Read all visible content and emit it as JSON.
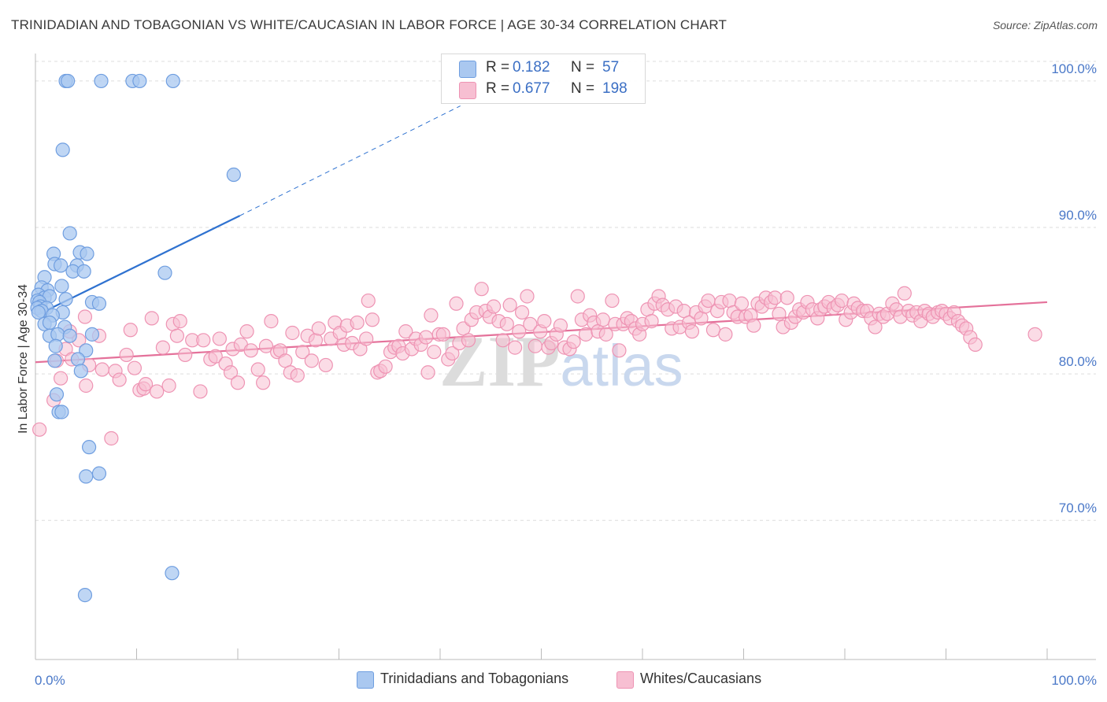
{
  "header": {
    "title": "TRINIDADIAN AND TOBAGONIAN VS WHITE/CAUCASIAN IN LABOR FORCE | AGE 30-34 CORRELATION CHART",
    "source": "Source: ZipAtlas.com"
  },
  "watermark": "ZIPatlas",
  "legend": {
    "series1": {
      "r_label": "R =",
      "r_value": "0.182",
      "n_label": "N =",
      "n_value": "57"
    },
    "series2": {
      "r_label": "R =",
      "r_value": "0.677",
      "n_label": "N =",
      "n_value": "198"
    }
  },
  "colors": {
    "blue_fill": "#aac8f0",
    "blue_stroke": "#6f9ee0",
    "blue_line": "#2f72d0",
    "pink_fill": "#f7bfd2",
    "pink_stroke": "#ee93b3",
    "pink_line": "#e4719a",
    "tick_text": "#4a78c8",
    "grid": "#dddddd"
  },
  "chart_data": {
    "type": "scatter",
    "title": "TRINIDADIAN AND TOBAGONIAN VS WHITE/CAUCASIAN IN LABOR FORCE | AGE 30-34 CORRELATION CHART",
    "xlabel": "",
    "ylabel": "In Labor Force | Age 30-34",
    "xlim": [
      0,
      100
    ],
    "ylim": [
      60.5,
      101.5
    ],
    "x_tick_labels": [
      "0.0%",
      "100.0%"
    ],
    "y_ticks": [
      70,
      80,
      90,
      100
    ],
    "y_tick_labels": [
      "70.0%",
      "80.0%",
      "90.0%",
      "100.0%"
    ],
    "legend_entries": [
      "Trinidadians and Tobagonians",
      "Whites/Caucasians"
    ],
    "series": [
      {
        "name": "Trinidadians and Tobagonians",
        "r": 0.182,
        "n": 57,
        "trend": {
          "x": [
            0.1,
            20.2
          ],
          "y": [
            84.0,
            90.8
          ]
        },
        "trend_extension": {
          "x": [
            20.2,
            42
          ],
          "y": [
            90.8,
            98.3
          ]
        },
        "points": [
          [
            3.0,
            100
          ],
          [
            3.2,
            100
          ],
          [
            6.5,
            100
          ],
          [
            9.6,
            100
          ],
          [
            10.3,
            100
          ],
          [
            13.6,
            100
          ],
          [
            2.7,
            95.3
          ],
          [
            19.6,
            93.6
          ],
          [
            3.4,
            89.6
          ],
          [
            1.8,
            88.2
          ],
          [
            4.4,
            88.3
          ],
          [
            5.1,
            88.2
          ],
          [
            1.9,
            87.5
          ],
          [
            2.5,
            87.4
          ],
          [
            4.1,
            87.4
          ],
          [
            3.7,
            87.0
          ],
          [
            4.8,
            87.0
          ],
          [
            12.8,
            86.9
          ],
          [
            0.9,
            86.6
          ],
          [
            0.6,
            85.9
          ],
          [
            2.6,
            86.0
          ],
          [
            1.2,
            85.7
          ],
          [
            0.3,
            85.4
          ],
          [
            0.9,
            85.2
          ],
          [
            1.4,
            85.3
          ],
          [
            3.0,
            85.1
          ],
          [
            0.2,
            85.0
          ],
          [
            0.4,
            84.9
          ],
          [
            0.5,
            84.6
          ],
          [
            0.2,
            84.5
          ],
          [
            1.1,
            84.5
          ],
          [
            5.6,
            84.9
          ],
          [
            6.3,
            84.8
          ],
          [
            0.6,
            84.3
          ],
          [
            0.3,
            84.2
          ],
          [
            2.7,
            84.2
          ],
          [
            1.7,
            84.0
          ],
          [
            0.9,
            83.4
          ],
          [
            1.4,
            83.5
          ],
          [
            2.9,
            83.2
          ],
          [
            1.4,
            82.6
          ],
          [
            2.2,
            82.7
          ],
          [
            3.4,
            82.6
          ],
          [
            5.6,
            82.7
          ],
          [
            2.0,
            81.9
          ],
          [
            5.0,
            81.6
          ],
          [
            1.9,
            80.9
          ],
          [
            4.2,
            81.0
          ],
          [
            4.5,
            80.2
          ],
          [
            2.1,
            78.6
          ],
          [
            2.3,
            77.4
          ],
          [
            2.6,
            77.4
          ],
          [
            5.3,
            75.0
          ],
          [
            5.0,
            73.0
          ],
          [
            6.3,
            73.2
          ],
          [
            13.5,
            66.4
          ],
          [
            4.9,
            64.9
          ]
        ]
      },
      {
        "name": "Whites/Caucasians",
        "r": 0.677,
        "n": 198,
        "trend": {
          "x": [
            0,
            100
          ],
          "y": [
            80.8,
            84.9
          ]
        },
        "points": [
          [
            0.4,
            76.2
          ],
          [
            1.8,
            78.2
          ],
          [
            2.1,
            80.9
          ],
          [
            2.5,
            79.7
          ],
          [
            3.0,
            81.7
          ],
          [
            3.4,
            82.9
          ],
          [
            3.6,
            81.0
          ],
          [
            4.3,
            82.3
          ],
          [
            4.9,
            83.9
          ],
          [
            5.0,
            79.2
          ],
          [
            5.3,
            80.6
          ],
          [
            6.3,
            82.6
          ],
          [
            6.6,
            80.3
          ],
          [
            7.5,
            75.6
          ],
          [
            7.9,
            80.2
          ],
          [
            8.3,
            79.6
          ],
          [
            9.0,
            81.3
          ],
          [
            9.4,
            83.0
          ],
          [
            9.8,
            80.4
          ],
          [
            10.3,
            78.9
          ],
          [
            10.7,
            79.0
          ],
          [
            10.9,
            79.3
          ],
          [
            11.5,
            83.8
          ],
          [
            12.0,
            78.8
          ],
          [
            12.6,
            81.8
          ],
          [
            13.2,
            79.2
          ],
          [
            13.6,
            83.4
          ],
          [
            14.0,
            82.6
          ],
          [
            14.3,
            83.6
          ],
          [
            14.8,
            81.3
          ],
          [
            15.5,
            82.3
          ],
          [
            16.3,
            78.8
          ],
          [
            16.6,
            82.3
          ],
          [
            17.3,
            81.0
          ],
          [
            17.8,
            81.2
          ],
          [
            18.2,
            82.4
          ],
          [
            18.8,
            80.7
          ],
          [
            19.3,
            80.1
          ],
          [
            19.5,
            81.7
          ],
          [
            20.0,
            79.4
          ],
          [
            20.3,
            82.0
          ],
          [
            20.9,
            82.9
          ],
          [
            21.3,
            81.6
          ],
          [
            22.0,
            80.3
          ],
          [
            22.5,
            79.4
          ],
          [
            22.8,
            81.9
          ],
          [
            23.3,
            83.6
          ],
          [
            23.9,
            81.5
          ],
          [
            24.2,
            81.6
          ],
          [
            24.7,
            80.9
          ],
          [
            25.2,
            80.1
          ],
          [
            25.4,
            82.8
          ],
          [
            25.9,
            79.9
          ],
          [
            26.4,
            81.5
          ],
          [
            26.9,
            82.6
          ],
          [
            27.3,
            80.9
          ],
          [
            27.7,
            82.3
          ],
          [
            28.0,
            83.1
          ],
          [
            28.7,
            80.6
          ],
          [
            29.2,
            82.4
          ],
          [
            29.6,
            83.5
          ],
          [
            30.1,
            82.8
          ],
          [
            30.5,
            82.0
          ],
          [
            30.8,
            83.3
          ],
          [
            31.3,
            82.1
          ],
          [
            31.8,
            83.5
          ],
          [
            32.1,
            81.7
          ],
          [
            32.7,
            82.4
          ],
          [
            32.9,
            85.0
          ],
          [
            33.3,
            83.7
          ],
          [
            33.8,
            80.1
          ],
          [
            34.1,
            80.2
          ],
          [
            34.6,
            80.5
          ],
          [
            35.1,
            81.5
          ],
          [
            35.5,
            81.8
          ],
          [
            35.9,
            81.9
          ],
          [
            36.3,
            81.4
          ],
          [
            36.6,
            82.9
          ],
          [
            37.2,
            81.7
          ],
          [
            37.6,
            82.4
          ],
          [
            38.1,
            82.0
          ],
          [
            38.8,
            80.1
          ],
          [
            38.6,
            82.5
          ],
          [
            39.1,
            84.0
          ],
          [
            39.4,
            81.5
          ],
          [
            39.9,
            82.7
          ],
          [
            40.3,
            82.7
          ],
          [
            40.8,
            81.0
          ],
          [
            41.2,
            81.4
          ],
          [
            41.6,
            84.8
          ],
          [
            41.9,
            82.1
          ],
          [
            42.3,
            83.1
          ],
          [
            42.8,
            82.3
          ],
          [
            43.1,
            83.7
          ],
          [
            43.6,
            84.2
          ],
          [
            44.1,
            85.8
          ],
          [
            44.5,
            84.3
          ],
          [
            44.9,
            83.9
          ],
          [
            45.3,
            84.6
          ],
          [
            45.8,
            83.6
          ],
          [
            46.2,
            82.3
          ],
          [
            46.6,
            83.4
          ],
          [
            46.9,
            84.7
          ],
          [
            47.4,
            81.8
          ],
          [
            47.8,
            82.9
          ],
          [
            48.1,
            84.2
          ],
          [
            48.6,
            85.3
          ],
          [
            48.9,
            83.4
          ],
          [
            49.4,
            81.9
          ],
          [
            49.9,
            82.9
          ],
          [
            50.3,
            83.6
          ],
          [
            50.7,
            81.8
          ],
          [
            51.0,
            82.1
          ],
          [
            51.5,
            82.7
          ],
          [
            51.9,
            83.3
          ],
          [
            52.3,
            81.8
          ],
          [
            52.8,
            81.7
          ],
          [
            53.2,
            82.2
          ],
          [
            53.6,
            85.3
          ],
          [
            54.0,
            83.7
          ],
          [
            54.4,
            82.7
          ],
          [
            54.8,
            84.0
          ],
          [
            55.2,
            83.5
          ],
          [
            55.6,
            82.9
          ],
          [
            56.1,
            83.7
          ],
          [
            56.4,
            82.7
          ],
          [
            57.0,
            85.0
          ],
          [
            57.3,
            83.4
          ],
          [
            57.7,
            81.6
          ],
          [
            58.1,
            83.4
          ],
          [
            58.5,
            83.8
          ],
          [
            58.9,
            83.6
          ],
          [
            59.3,
            83.1
          ],
          [
            59.7,
            82.7
          ],
          [
            60.0,
            83.4
          ],
          [
            60.5,
            84.4
          ],
          [
            60.9,
            83.6
          ],
          [
            61.2,
            84.8
          ],
          [
            61.6,
            85.3
          ],
          [
            62.0,
            84.7
          ],
          [
            62.5,
            84.4
          ],
          [
            62.9,
            83.1
          ],
          [
            63.3,
            84.6
          ],
          [
            63.7,
            83.2
          ],
          [
            64.1,
            84.3
          ],
          [
            64.6,
            83.5
          ],
          [
            64.9,
            82.9
          ],
          [
            65.3,
            84.2
          ],
          [
            65.8,
            83.8
          ],
          [
            66.2,
            84.6
          ],
          [
            66.5,
            85.0
          ],
          [
            67.0,
            83.0
          ],
          [
            67.4,
            84.3
          ],
          [
            67.8,
            84.9
          ],
          [
            68.2,
            82.7
          ],
          [
            68.6,
            85.0
          ],
          [
            69.0,
            84.2
          ],
          [
            69.4,
            83.9
          ],
          [
            69.8,
            84.8
          ],
          [
            70.2,
            83.9
          ],
          [
            70.7,
            84.0
          ],
          [
            71.0,
            83.3
          ],
          [
            71.4,
            84.8
          ],
          [
            71.8,
            84.6
          ],
          [
            72.2,
            85.2
          ],
          [
            72.7,
            84.9
          ],
          [
            73.1,
            85.2
          ],
          [
            73.5,
            84.1
          ],
          [
            73.9,
            83.2
          ],
          [
            74.3,
            85.2
          ],
          [
            74.7,
            83.5
          ],
          [
            75.1,
            83.9
          ],
          [
            75.5,
            84.4
          ],
          [
            75.9,
            84.2
          ],
          [
            76.3,
            84.9
          ],
          [
            76.8,
            84.4
          ],
          [
            77.3,
            83.8
          ],
          [
            77.6,
            84.4
          ],
          [
            78.0,
            84.6
          ],
          [
            78.4,
            84.9
          ],
          [
            78.9,
            84.5
          ],
          [
            79.3,
            84.7
          ],
          [
            79.7,
            85.0
          ],
          [
            80.1,
            83.7
          ],
          [
            80.6,
            84.2
          ],
          [
            80.9,
            84.8
          ],
          [
            81.3,
            84.5
          ],
          [
            81.8,
            84.3
          ],
          [
            82.2,
            84.3
          ],
          [
            82.6,
            83.8
          ],
          [
            83.0,
            83.2
          ],
          [
            83.4,
            84.1
          ],
          [
            83.8,
            83.9
          ],
          [
            84.2,
            84.1
          ],
          [
            84.7,
            84.8
          ],
          [
            85.1,
            84.4
          ],
          [
            85.5,
            83.9
          ],
          [
            85.9,
            85.5
          ],
          [
            86.3,
            84.3
          ],
          [
            86.7,
            84.0
          ],
          [
            87.1,
            84.2
          ],
          [
            87.5,
            83.6
          ],
          [
            87.9,
            84.3
          ],
          [
            88.3,
            84.1
          ],
          [
            88.7,
            83.9
          ],
          [
            89.2,
            84.2
          ],
          [
            89.6,
            84.3
          ],
          [
            90.0,
            84.1
          ],
          [
            90.4,
            83.8
          ],
          [
            90.8,
            84.2
          ],
          [
            91.2,
            83.6
          ],
          [
            91.6,
            83.3
          ],
          [
            92.0,
            83.1
          ],
          [
            92.4,
            82.5
          ],
          [
            92.9,
            82.0
          ],
          [
            98.8,
            82.7
          ]
        ]
      }
    ]
  },
  "bottom_legend": {
    "series1_label": "Trinidadians and Tobagonians",
    "series2_label": "Whites/Caucasians"
  }
}
